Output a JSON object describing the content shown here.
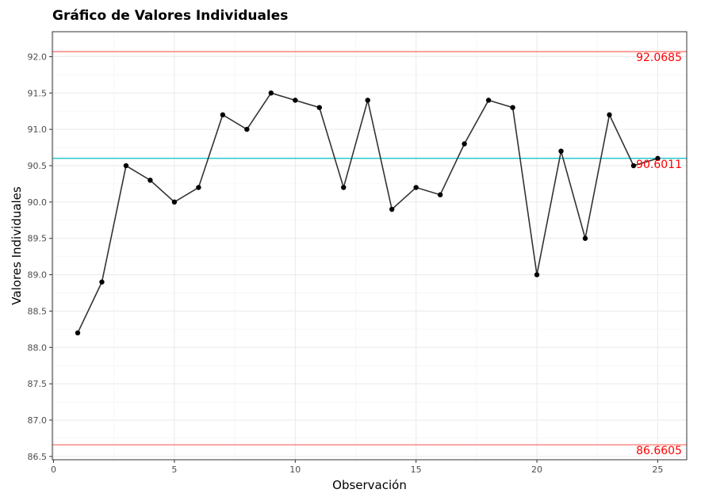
{
  "chart_data": {
    "type": "line",
    "title": "Gráfico de Valores Individuales",
    "xlabel": "Observación",
    "ylabel": "Valores Individuales",
    "xlim": [
      -0.05,
      26.2
    ],
    "ylim": [
      86.455,
      92.343
    ],
    "x_ticks": [
      0,
      5,
      10,
      15,
      20,
      25
    ],
    "y_ticks": [
      86.5,
      87.0,
      87.5,
      88.0,
      88.5,
      89.0,
      89.5,
      90.0,
      90.5,
      91.0,
      91.5,
      92.0
    ],
    "grid": true,
    "legend": "none",
    "series": [
      {
        "x": [
          1,
          2,
          3,
          4,
          5,
          6,
          7,
          8,
          9,
          10,
          11,
          12,
          13,
          14,
          15,
          16,
          17,
          18,
          19,
          20,
          21,
          22,
          23,
          24,
          25
        ],
        "values": [
          88.2,
          88.9,
          90.5,
          90.3,
          90.0,
          90.2,
          91.2,
          91.0,
          91.5,
          91.4,
          91.3,
          90.2,
          91.4,
          89.9,
          90.2,
          90.1,
          90.8,
          91.4,
          91.3,
          89.0,
          90.7,
          89.5,
          91.2,
          90.5,
          90.6
        ],
        "color": "#333333"
      }
    ],
    "reference_lines": [
      {
        "value": 92.0685,
        "label": "92.0685",
        "color": "#f8766d",
        "label_color": "#ff0000"
      },
      {
        "value": 90.6011,
        "label": "90.6011",
        "color": "#00bfc4",
        "label_color": "#ff0000"
      },
      {
        "value": 86.6605,
        "label": "86.6605",
        "color": "#f8766d",
        "label_color": "#ff0000"
      }
    ]
  }
}
